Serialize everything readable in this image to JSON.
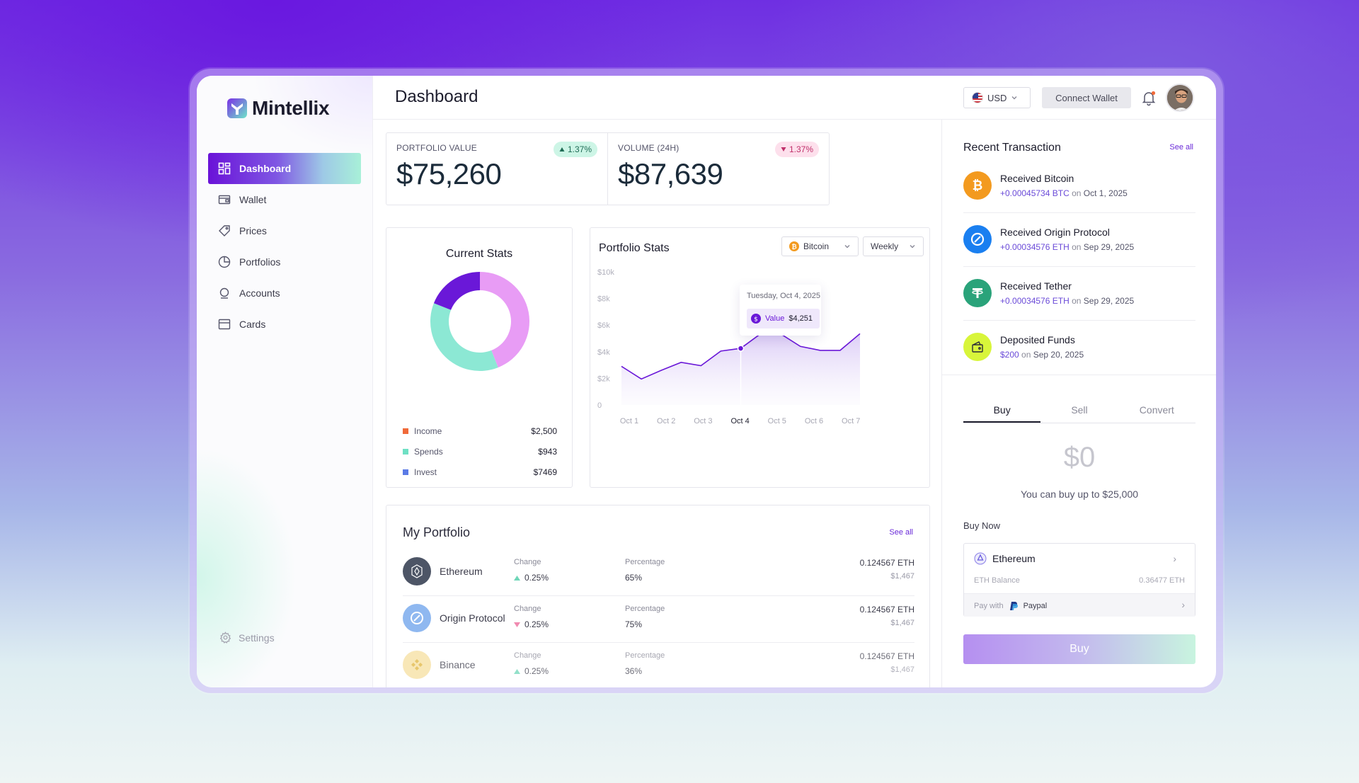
{
  "brand": {
    "name": "Mintellix"
  },
  "sidebar": {
    "items": [
      {
        "label": "Dashboard",
        "icon": "grid-icon",
        "active": true
      },
      {
        "label": "Wallet",
        "icon": "wallet-icon"
      },
      {
        "label": "Prices",
        "icon": "tag-icon"
      },
      {
        "label": "Portfolios",
        "icon": "pie-icon"
      },
      {
        "label": "Accounts",
        "icon": "user-icon"
      },
      {
        "label": "Cards",
        "icon": "card-icon"
      }
    ],
    "settings_label": "Settings"
  },
  "header": {
    "title": "Dashboard",
    "currency": "USD",
    "connect_label": "Connect Wallet"
  },
  "kpis": [
    {
      "label": "PORTFOLIO VALUE",
      "value": "$75,260",
      "change": "1.37%",
      "direction": "up"
    },
    {
      "label": "VOLUME (24H)",
      "value": "$87,639",
      "change": "1.37%",
      "direction": "down"
    }
  ],
  "current_stats": {
    "title": "Current Stats",
    "legend": [
      {
        "label": "Income",
        "value": "$2,500",
        "color": "#f06a3a"
      },
      {
        "label": "Spends",
        "value": "$943",
        "color": "#6fe0c4"
      },
      {
        "label": "Invest",
        "value": "$7469",
        "color": "#5b7be6"
      }
    ]
  },
  "portfolio_stats": {
    "title": "Portfolio Stats",
    "coin_select": "Bitcoin",
    "period_select": "Weekly",
    "tooltip": {
      "date": "Tuesday, Oct 4, 2025",
      "label": "Value",
      "value": "$4,251"
    }
  },
  "chart_data": [
    {
      "type": "pie",
      "title": "Current Stats",
      "slices": [
        {
          "color": "#e89cf5",
          "value": 0.44
        },
        {
          "color": "#8ce8d4",
          "value": 0.37
        },
        {
          "color": "#6a18d8",
          "value": 0.19
        }
      ]
    },
    {
      "type": "area",
      "title": "Portfolio Stats",
      "categories": [
        "Oct 1",
        "Oct 2",
        "Oct 3",
        "Oct 4",
        "Oct 5",
        "Oct 6",
        "Oct 7"
      ],
      "x_values": [
        0,
        0.5,
        1,
        1.5,
        2,
        2.5,
        3,
        3.5,
        4,
        4.5,
        5,
        5.5,
        6
      ],
      "values": [
        2900,
        1950,
        2600,
        3200,
        2950,
        4050,
        4251,
        5350,
        5350,
        4400,
        4100,
        4100,
        5350
      ],
      "y_ticks": [
        "$10k",
        "$8k",
        "$6k",
        "$4k",
        "$2k",
        "0"
      ],
      "ylim": [
        0,
        10000
      ],
      "highlight_category": "Oct 4",
      "color": "#6a18d8"
    }
  ],
  "my_portfolio": {
    "title": "My Portfolio",
    "see_all": "See all",
    "change_label": "Change",
    "percentage_label": "Percentage",
    "rows": [
      {
        "name": "Ethereum",
        "change": "0.25%",
        "direction": "up",
        "percentage": "65%",
        "amount": "0.124567 ETH",
        "usd": "$1,467",
        "icon": "ethereum-icon"
      },
      {
        "name": "Origin Protocol",
        "change": "0.25%",
        "direction": "down",
        "percentage": "75%",
        "amount": "0.124567 ETH",
        "usd": "$1,467",
        "icon": "origin-protocol-icon"
      },
      {
        "name": "Binance",
        "change": "0.25%",
        "direction": "up",
        "percentage": "36%",
        "amount": "0.124567 ETH",
        "usd": "$1,467",
        "icon": "binance-icon"
      }
    ]
  },
  "recent_transactions": {
    "title": "Recent Transaction",
    "see_all": "See all",
    "items": [
      {
        "title": "Received Bitcoin",
        "amount": "+0.00045734 BTC",
        "on": "on",
        "date": "Oct 1, 2025",
        "icon": "bitcoin-icon",
        "color": "#f39a1f"
      },
      {
        "title": "Received Origin Protocol",
        "amount": "+0.00034576 ETH",
        "on": "on",
        "date": "Sep 29, 2025",
        "icon": "origin-protocol-icon",
        "color": "#1a7ff0"
      },
      {
        "title": "Received Tether",
        "amount": "+0.00034576 ETH",
        "on": "on",
        "date": "Sep 29, 2025",
        "icon": "tether-icon",
        "color": "#2aa37a"
      },
      {
        "title": "Deposited Funds",
        "amount": "$200",
        "on": "on",
        "date": "Sep 20, 2025",
        "icon": "wallet-icon",
        "color": "#d8f53a"
      }
    ]
  },
  "trade": {
    "tabs": [
      "Buy",
      "Sell",
      "Convert"
    ],
    "amount": "$0",
    "limit_text": "You can buy up to $25,000",
    "buy_now_label": "Buy Now",
    "asset": "Ethereum",
    "balance_label": "ETH Balance",
    "balance_value": "0.36477 ETH",
    "pay_with_label": "Pay with",
    "pay_method": "Paypal",
    "buy_button": "Buy"
  }
}
